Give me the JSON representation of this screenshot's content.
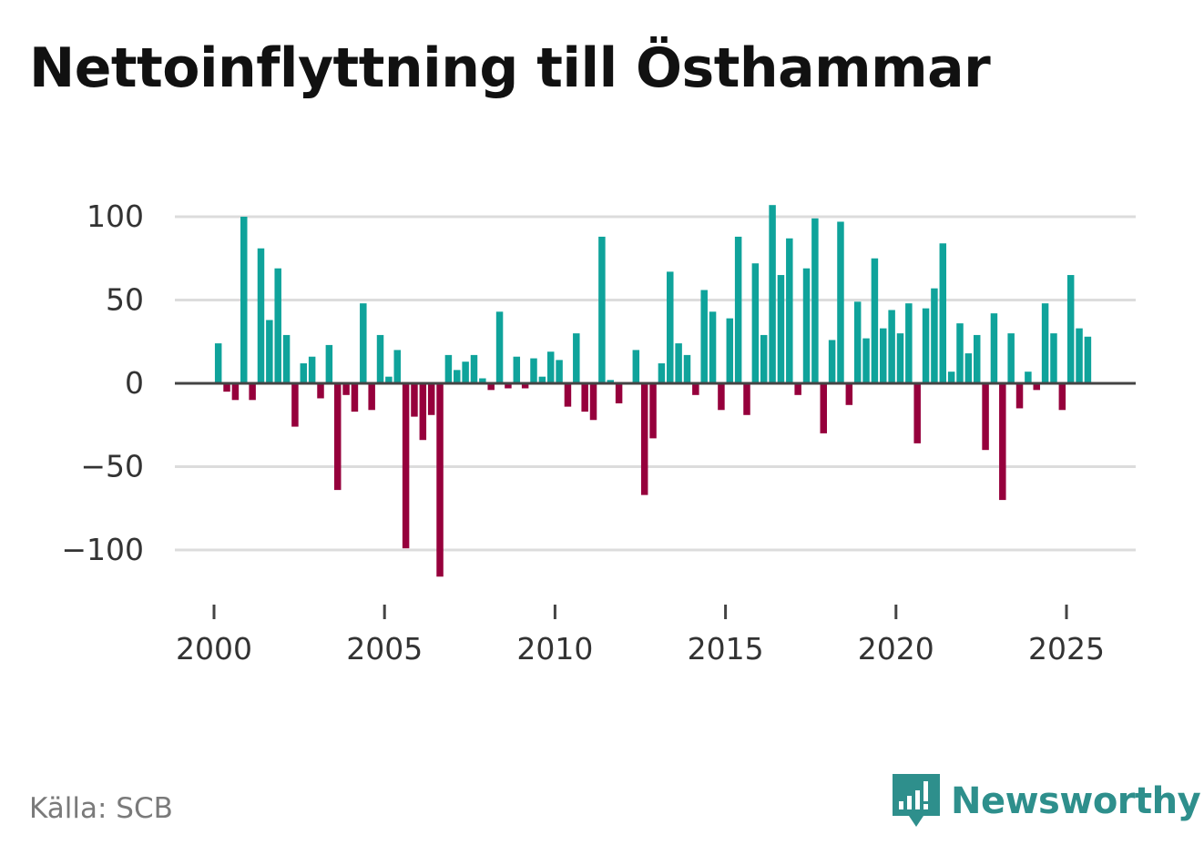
{
  "title": "Nettoinflyttning till Östhammar",
  "source": "Källa: SCB",
  "brand": {
    "name": "Newsworthy",
    "icon": "newsworthy-logo-icon",
    "color": "#2e8f8c"
  },
  "chart_data": {
    "type": "bar",
    "title": "Nettoinflyttning till Östhammar",
    "xlabel": "",
    "ylabel": "",
    "ylim": [
      -125,
      115
    ],
    "xlim": [
      1999.0,
      2026.5
    ],
    "yticks": [
      100,
      50,
      0,
      -50,
      -100
    ],
    "ytick_labels": [
      "100",
      "50",
      "0",
      "−50",
      "−100"
    ],
    "xticks": [
      2000,
      2005,
      2010,
      2015,
      2020,
      2025
    ],
    "xtick_labels": [
      "2000",
      "2005",
      "2010",
      "2015",
      "2020",
      "2025"
    ],
    "grid": true,
    "positive_color": "#0fa39b",
    "negative_color": "#96003c",
    "period": "monthly-ish periods, 4 per year",
    "series": [
      {
        "name": "Nettoinflyttning",
        "start_year": 2000.125,
        "step": 0.25,
        "values": [
          24,
          -5,
          -10,
          100,
          -10,
          81,
          38,
          69,
          29,
          -26,
          12,
          16,
          -9,
          23,
          -64,
          -7,
          -17,
          48,
          -16,
          29,
          4,
          20,
          -99,
          -20,
          -34,
          -19,
          -116,
          17,
          8,
          13,
          17,
          3,
          -4,
          43,
          -3,
          16,
          -3,
          15,
          4,
          19,
          14,
          -14,
          30,
          -17,
          -22,
          88,
          2,
          -12,
          0,
          20,
          -67,
          -33,
          12,
          67,
          24,
          17,
          -7,
          56,
          43,
          -16,
          39,
          88,
          -19,
          72,
          29,
          107,
          65,
          87,
          -7,
          69,
          99,
          -30,
          26,
          97,
          -13,
          49,
          27,
          75,
          33,
          44,
          30,
          48,
          -36,
          45,
          57,
          84,
          7,
          36,
          18,
          29,
          -40,
          42,
          -70,
          30,
          -15,
          7,
          -4,
          48,
          30,
          -16,
          65,
          33,
          28
        ]
      }
    ]
  }
}
